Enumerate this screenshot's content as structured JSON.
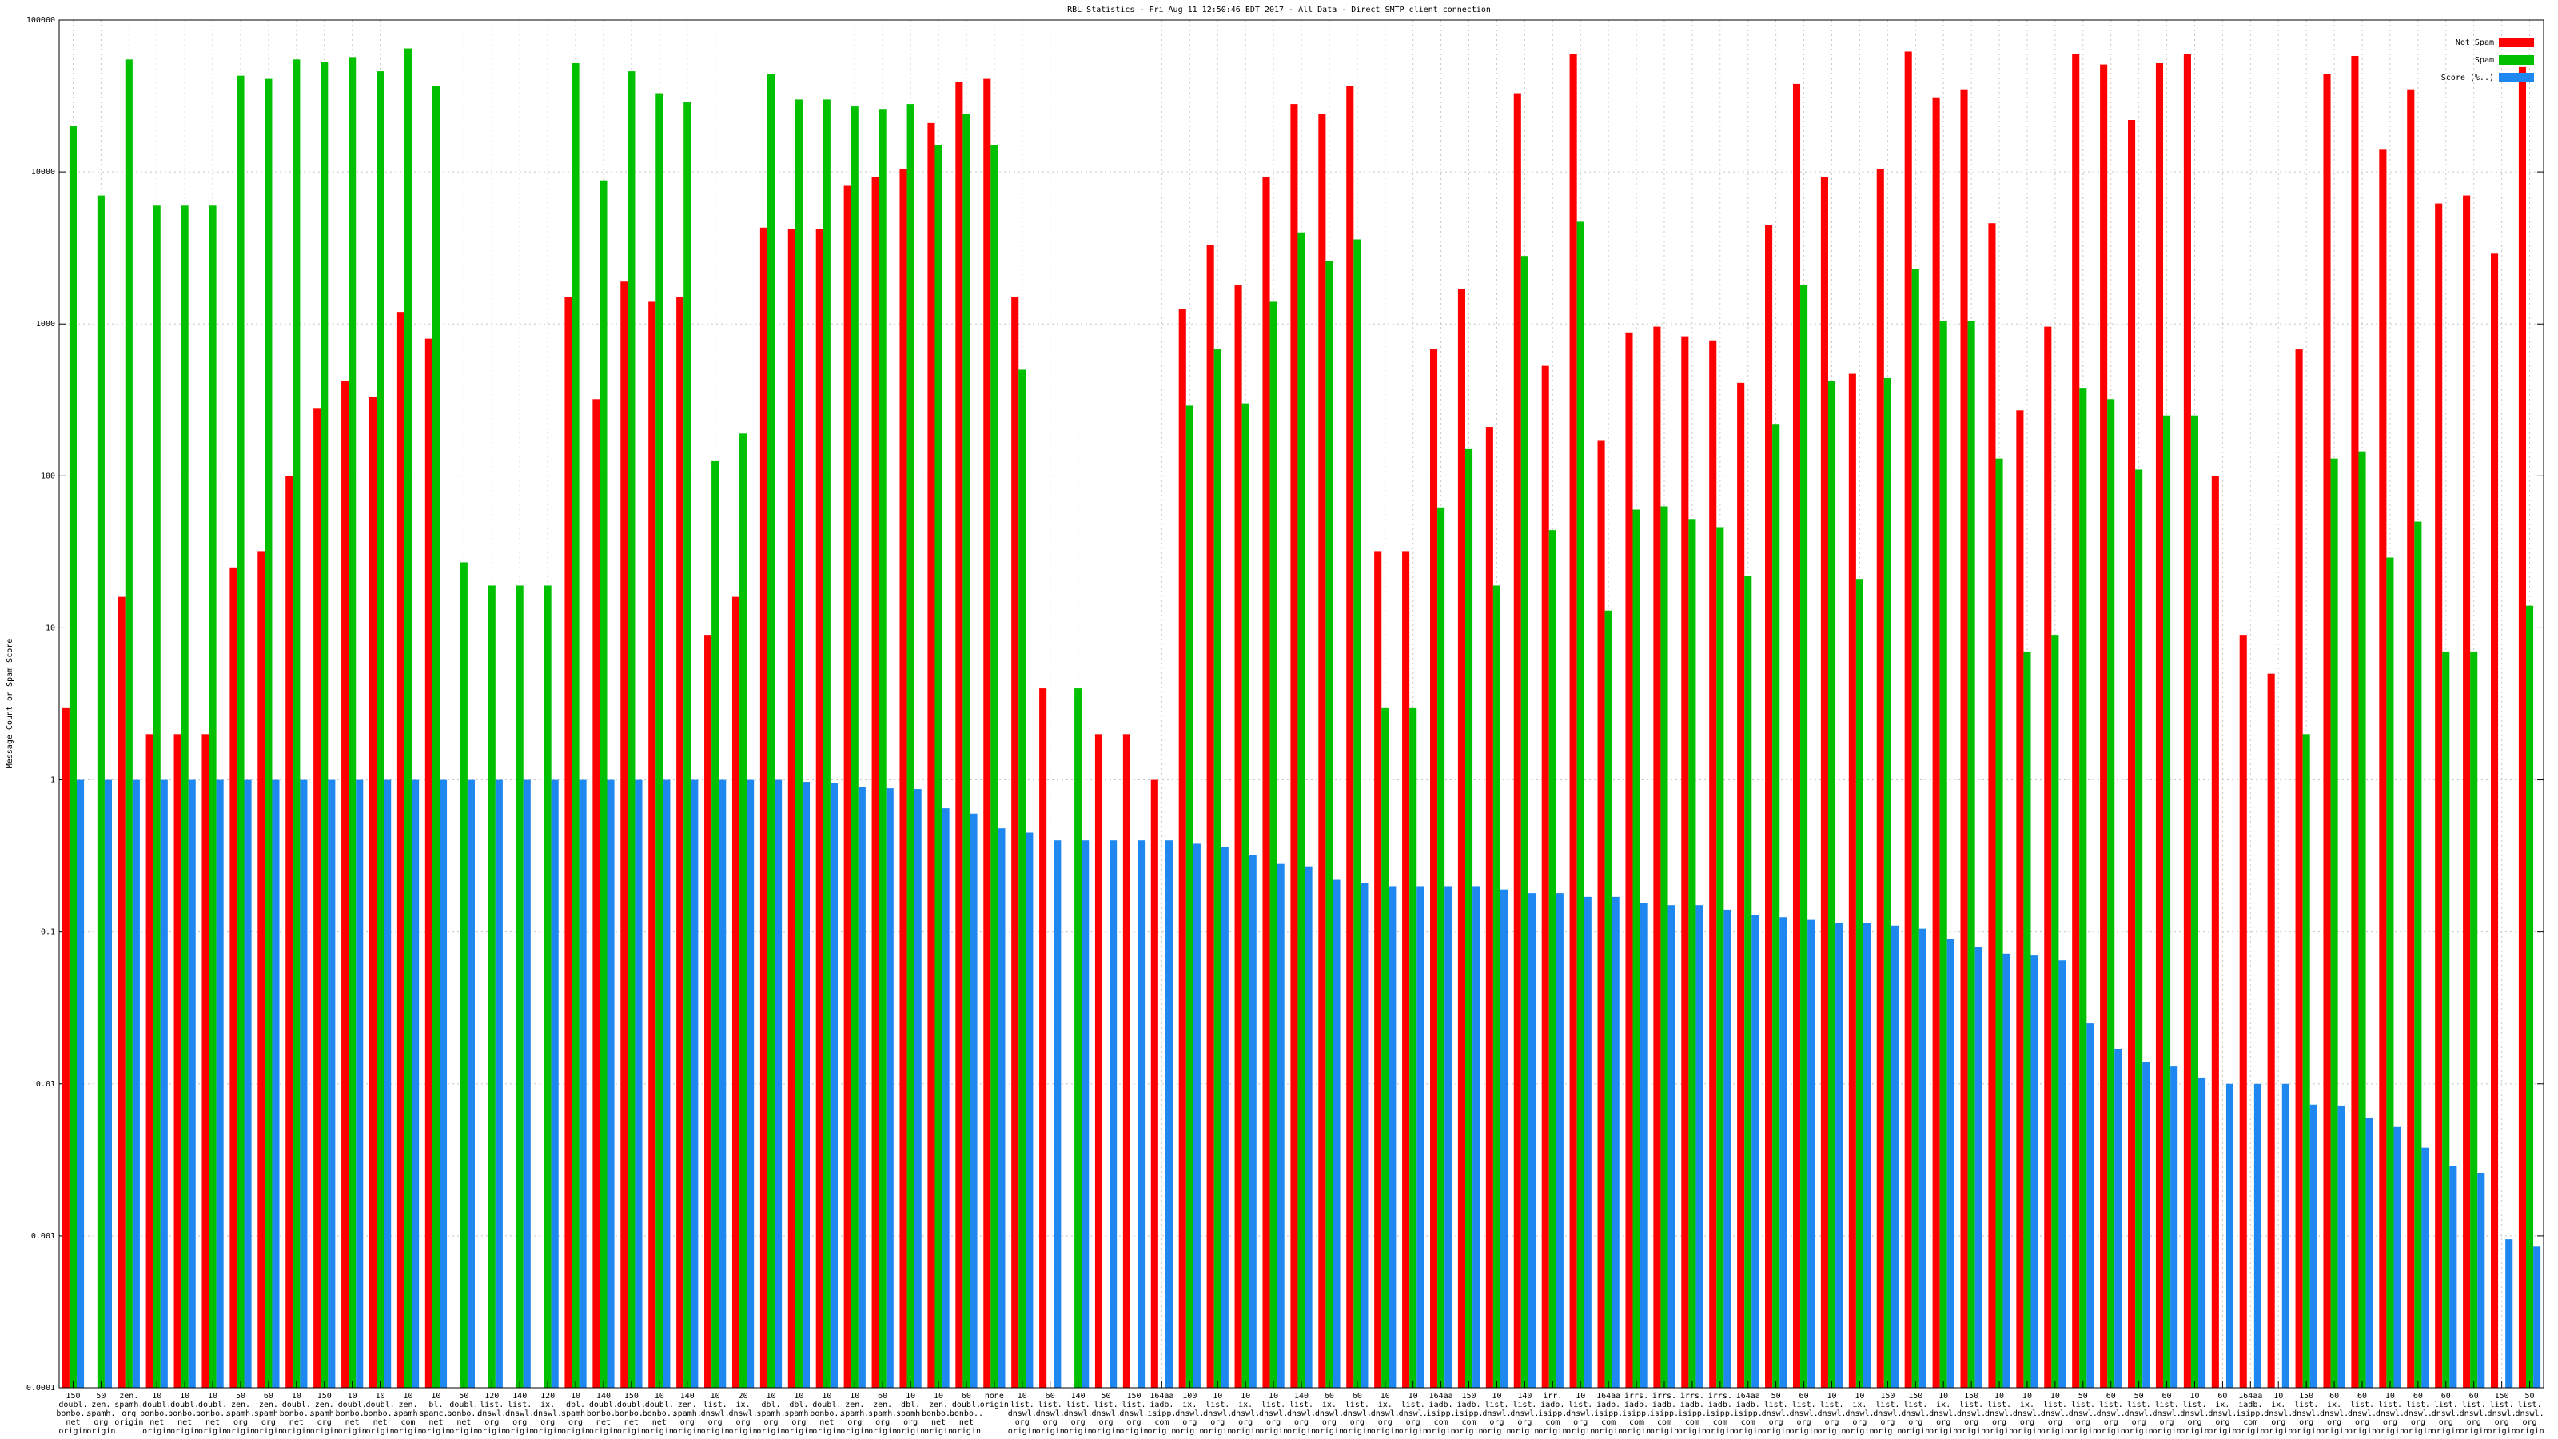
{
  "chart_data": {
    "type": "bar",
    "title": "RBL Statistics - Fri Aug 11 12:50:46 EDT 2017 - All Data - Direct SMTP client connection",
    "y_label": "Message Count or Spam Score",
    "log_scale": true,
    "grid": true,
    "legend": "upper right",
    "ylim": [
      0.0001,
      100000
    ],
    "yticks": [
      0.0001,
      0.001,
      0.01,
      0.1,
      1,
      10,
      100,
      1000,
      10000,
      100000
    ],
    "categories": [
      [
        "150",
        "doubl.",
        "bonbo..",
        "net",
        "origin"
      ],
      [
        "50",
        "zen.",
        "spamh.",
        "org",
        "origin"
      ],
      [
        "zen.",
        "spamh.",
        "org",
        "origin"
      ],
      [
        "10",
        "doubl.",
        "bonbo..",
        "net",
        "origin"
      ],
      [
        "10",
        "doubl.",
        "bonbo..",
        "net",
        "origin"
      ],
      [
        "10",
        "doubl.",
        "bonbo..",
        "net",
        "origin"
      ],
      [
        "50",
        "zen.",
        "spamh.",
        "org",
        "origin"
      ],
      [
        "60",
        "zen.",
        "spamh.",
        "org",
        "origin"
      ],
      [
        "10",
        "doubl.",
        "bonbo..",
        "net",
        "origin"
      ],
      [
        "150",
        "zen.",
        "spamh.",
        "org",
        "origin"
      ],
      [
        "10",
        "doubl.",
        "bonbo..",
        "net",
        "origin"
      ],
      [
        "10",
        "doubl.",
        "bonbo..",
        "net",
        "origin"
      ],
      [
        "10",
        "zen.",
        "spamh.",
        "com",
        "origin"
      ],
      [
        "10",
        "bl.",
        "spamc..",
        "net",
        "origin"
      ],
      [
        "50",
        "doubl.",
        "bonbo..",
        "net",
        "origin"
      ],
      [
        "120",
        "list.",
        "dnswl.",
        "org",
        "origin"
      ],
      [
        "140",
        "list.",
        "dnswl.",
        "org",
        "origin"
      ],
      [
        "120",
        "ix.",
        "dnswl.",
        "org",
        "origin"
      ],
      [
        "10",
        "dbl.",
        "spamh.",
        "org",
        "origin"
      ],
      [
        "140",
        "doubl.",
        "bonbo..",
        "net",
        "origin"
      ],
      [
        "150",
        "doubl.",
        "bonbo..",
        "net",
        "origin"
      ],
      [
        "10",
        "doubl.",
        "bonbo..",
        "net",
        "origin"
      ],
      [
        "140",
        "zen.",
        "spamh.",
        "org",
        "origin"
      ],
      [
        "10",
        "list.",
        "dnswl.",
        "org",
        "origin"
      ],
      [
        "20",
        "ix.",
        "dnswl.",
        "org",
        "origin"
      ],
      [
        "10",
        "dbl.",
        "spamh.",
        "org",
        "origin"
      ],
      [
        "10",
        "dbl.",
        "spamh.",
        "org",
        "origin"
      ],
      [
        "10",
        "doubl.",
        "bonbo..",
        "net",
        "origin"
      ],
      [
        "10",
        "zen.",
        "spamh.",
        "org",
        "origin"
      ],
      [
        "60",
        "zen.",
        "spamh.",
        "org",
        "origin"
      ],
      [
        "10",
        "dbl.",
        "spamh.",
        "org",
        "origin"
      ],
      [
        "10",
        "zen.",
        "bonbo..",
        "net",
        "origin"
      ],
      [
        "60",
        "doubl.",
        "bonbo..",
        "net",
        "origin"
      ],
      [
        "none",
        "origin"
      ],
      [
        "10",
        "list.",
        "dnswl.",
        "org",
        "origin"
      ],
      [
        "60",
        "list.",
        "dnswl.",
        "org",
        "origin"
      ],
      [
        "140",
        "list.",
        "dnswl.",
        "org",
        "origin"
      ],
      [
        "50",
        "list.",
        "dnswl.",
        "org",
        "origin"
      ],
      [
        "150",
        "list.",
        "dnswl.",
        "org",
        "origin"
      ],
      [
        "164aa",
        "iadb.",
        "isipp.",
        "com",
        "origin"
      ],
      [
        "100",
        "ix.",
        "dnswl.",
        "org",
        "origin"
      ],
      [
        "10",
        "list.",
        "dnswl.",
        "org",
        "origin"
      ],
      [
        "10",
        "ix.",
        "dnswl.",
        "org",
        "origin"
      ],
      [
        "10",
        "list.",
        "dnswl.",
        "org",
        "origin"
      ],
      [
        "140",
        "list.",
        "dnswl.",
        "org",
        "origin"
      ],
      [
        "60",
        "ix.",
        "dnswl.",
        "org",
        "origin"
      ],
      [
        "60",
        "list.",
        "dnswl.",
        "org",
        "origin"
      ],
      [
        "10",
        "ix.",
        "dnswl.",
        "org",
        "origin"
      ],
      [
        "10",
        "list.",
        "dnswl.",
        "org",
        "origin"
      ],
      [
        "164aa",
        "iadb.",
        "isipp.",
        "com",
        "origin"
      ],
      [
        "150",
        "iadb.",
        "isipp.",
        "com",
        "origin"
      ],
      [
        "10",
        "list.",
        "dnswl.",
        "org",
        "origin"
      ],
      [
        "140",
        "list.",
        "dnswl.",
        "org",
        "origin"
      ],
      [
        "irr.",
        "iadb.",
        "isipp.",
        "com",
        "origin"
      ],
      [
        "10",
        "list.",
        "dnswl.",
        "org",
        "origin"
      ],
      [
        "164aa",
        "iadb.",
        "isipp.",
        "com",
        "origin"
      ],
      [
        "irrs.",
        "iadb.",
        "isipp.",
        "com",
        "origin"
      ],
      [
        "irrs.",
        "iadb.",
        "isipp.",
        "com",
        "origin"
      ],
      [
        "irrs.",
        "iadb.",
        "isipp.",
        "com",
        "origin"
      ],
      [
        "irrs.",
        "iadb.",
        "isipp.",
        "com",
        "origin"
      ],
      [
        "164aa",
        "iadb.",
        "isipp.",
        "com",
        "origin"
      ],
      [
        "50",
        "list.",
        "dnswl.",
        "org",
        "origin"
      ],
      [
        "60",
        "list.",
        "dnswl.",
        "org",
        "origin"
      ],
      [
        "10",
        "list.",
        "dnswl.",
        "org",
        "origin"
      ],
      [
        "10",
        "ix.",
        "dnswl.",
        "org",
        "origin"
      ],
      [
        "150",
        "list.",
        "dnswl.",
        "org",
        "origin"
      ],
      [
        "150",
        "list.",
        "dnswl.",
        "org",
        "origin"
      ],
      [
        "10",
        "ix.",
        "dnswl.",
        "org",
        "origin"
      ],
      [
        "150",
        "list.",
        "dnswl.",
        "org",
        "origin"
      ],
      [
        "10",
        "list.",
        "dnswl.",
        "org",
        "origin"
      ],
      [
        "10",
        "ix.",
        "dnswl.",
        "org",
        "origin"
      ],
      [
        "10",
        "list.",
        "dnswl.",
        "org",
        "origin"
      ],
      [
        "50",
        "list.",
        "dnswl.",
        "org",
        "origin"
      ],
      [
        "60",
        "list.",
        "dnswl.",
        "org",
        "origin"
      ],
      [
        "50",
        "list.",
        "dnswl.",
        "org",
        "origin"
      ],
      [
        "60",
        "list.",
        "dnswl.",
        "org",
        "origin"
      ],
      [
        "10",
        "list.",
        "dnswl.",
        "org",
        "origin"
      ],
      [
        "60",
        "ix.",
        "dnswl.",
        "org",
        "origin"
      ],
      [
        "164aa",
        "iadb.",
        "isipp.",
        "com",
        "origin"
      ],
      [
        "10",
        "ix.",
        "dnswl.",
        "org",
        "origin"
      ],
      [
        "150",
        "list.",
        "dnswl.",
        "org",
        "origin"
      ],
      [
        "60",
        "ix.",
        "dnswl.",
        "org",
        "origin"
      ],
      [
        "60",
        "list.",
        "dnswl.",
        "org",
        "origin"
      ],
      [
        "10",
        "list.",
        "dnswl.",
        "org",
        "origin"
      ],
      [
        "60",
        "list.",
        "dnswl.",
        "org",
        "origin"
      ],
      [
        "60",
        "list.",
        "dnswl.",
        "org",
        "origin"
      ],
      [
        "60",
        "list.",
        "dnswl.",
        "org",
        "origin"
      ],
      [
        "150",
        "list.",
        "dnswl.",
        "org",
        "origin"
      ],
      [
        "50",
        "list.",
        "dnswl.",
        "org",
        "origin"
      ]
    ],
    "series": [
      {
        "name": "Not Spam",
        "color": "#ff0000",
        "values": [
          3,
          null,
          16,
          2,
          2,
          2,
          25,
          32,
          100,
          280,
          420,
          330,
          1200,
          800,
          null,
          null,
          null,
          null,
          1500,
          320,
          1900,
          1400,
          1500,
          9,
          16,
          4300,
          4200,
          4200,
          8100,
          9200,
          10500,
          21000,
          39000,
          41000,
          1500,
          4,
          null,
          2,
          2,
          1,
          1250,
          3300,
          1800,
          9200,
          28000,
          24000,
          37000,
          32,
          32,
          680,
          1700,
          210,
          33000,
          530,
          60000,
          170,
          880,
          960,
          830,
          780,
          410,
          4500,
          38000,
          9200,
          470,
          10500,
          62000,
          31000,
          35000,
          4600,
          270,
          960,
          60000,
          51000,
          22000,
          52000,
          60000,
          100,
          9,
          5,
          680,
          44000,
          58000,
          14000,
          35000,
          6200,
          7000,
          2900,
          49000
        ]
      },
      {
        "name": "Spam",
        "color": "#00c000",
        "values": [
          20000,
          7000,
          55000,
          6000,
          6000,
          6000,
          43000,
          41000,
          55000,
          53000,
          57000,
          46000,
          65000,
          37000,
          27,
          19,
          19,
          19,
          52000,
          8800,
          46000,
          33000,
          29000,
          125,
          190,
          44000,
          30000,
          30000,
          27000,
          26000,
          28000,
          15000,
          24000,
          15000,
          500,
          null,
          4,
          null,
          null,
          null,
          290,
          680,
          300,
          1400,
          4000,
          2600,
          3600,
          3,
          3,
          62,
          150,
          19,
          2800,
          44,
          4700,
          13,
          60,
          63,
          52,
          46,
          22,
          220,
          1800,
          420,
          21,
          440,
          2300,
          1050,
          1050,
          130,
          7,
          9,
          380,
          320,
          110,
          250,
          250,
          null,
          null,
          null,
          2,
          130,
          145,
          29,
          50,
          7,
          7,
          null,
          14
        ]
      },
      {
        "name": "Score (%..)",
        "color": "#1e88f0",
        "values": [
          1,
          1,
          1,
          1,
          1,
          1,
          1,
          1,
          1,
          1,
          1,
          1,
          1,
          1,
          1,
          1,
          1,
          1,
          1,
          1,
          1,
          1,
          1,
          1,
          1,
          1,
          0.97,
          0.95,
          0.9,
          0.88,
          0.87,
          0.65,
          0.6,
          0.48,
          0.45,
          0.4,
          0.4,
          0.4,
          0.4,
          0.4,
          0.38,
          0.36,
          0.32,
          0.28,
          0.27,
          0.22,
          0.21,
          0.2,
          0.2,
          0.2,
          0.2,
          0.19,
          0.18,
          0.18,
          0.17,
          0.17,
          0.155,
          0.15,
          0.15,
          0.14,
          0.13,
          0.125,
          0.12,
          0.115,
          0.115,
          0.11,
          0.105,
          0.09,
          0.08,
          0.072,
          0.07,
          0.065,
          0.025,
          0.017,
          0.014,
          0.013,
          0.011,
          0.01,
          0.01,
          0.01,
          0.0073,
          0.0072,
          0.006,
          0.0052,
          0.0038,
          0.0029,
          0.0026,
          0.00095,
          0.00085
        ]
      }
    ]
  }
}
